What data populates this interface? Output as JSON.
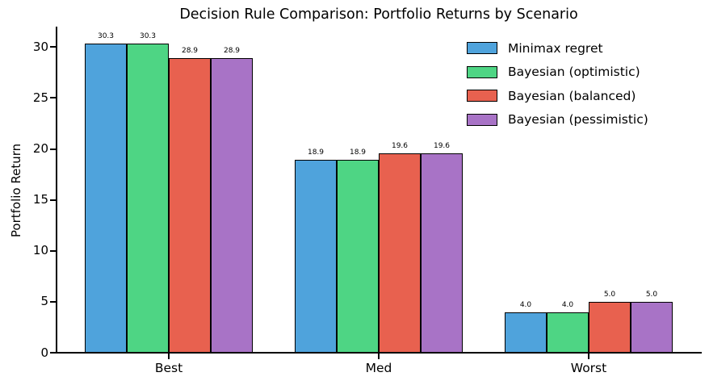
{
  "chart_data": {
    "type": "bar",
    "title": "Decision Rule Comparison: Portfolio Returns by Scenario",
    "xlabel": "",
    "ylabel": "Portfolio Return",
    "categories": [
      "Best",
      "Med",
      "Worst"
    ],
    "series": [
      {
        "name": "Minimax regret",
        "color": "#4fa3dc",
        "values": [
          30.3,
          18.9,
          4.0
        ]
      },
      {
        "name": "Bayesian (optimistic)",
        "color": "#4ed584",
        "values": [
          30.3,
          18.9,
          4.0
        ]
      },
      {
        "name": "Bayesian (balanced)",
        "color": "#e8614f",
        "values": [
          28.9,
          19.6,
          5.0
        ]
      },
      {
        "name": "Bayesian (pessimistic)",
        "color": "#a873c6",
        "values": [
          28.9,
          19.6,
          5.0
        ]
      }
    ],
    "yticks": [
      0,
      5,
      10,
      15,
      20,
      25,
      30
    ],
    "ylim": [
      0,
      32
    ],
    "grid": false,
    "legend_position": "upper right",
    "bar_edge_color": "#000000",
    "value_labels_shown": true,
    "value_label_format": "one_decimal"
  }
}
